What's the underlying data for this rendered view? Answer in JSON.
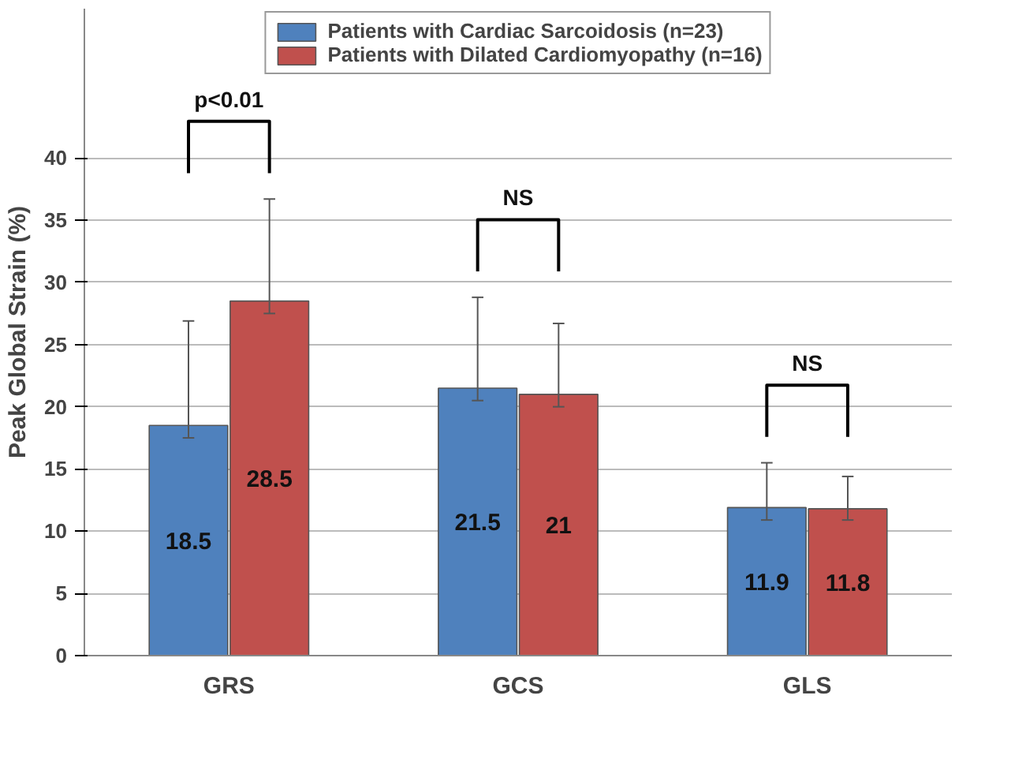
{
  "chart_data": {
    "type": "bar",
    "ylabel": "Peak Global Strain (%)",
    "categories": [
      "GRS",
      "GCS",
      "GLS"
    ],
    "series": [
      {
        "name": "Patients with Cardiac Sarcoidosis (n=23)",
        "color": "#4f81bd",
        "values": [
          18.5,
          21.5,
          11.9
        ],
        "errors": [
          [
            17.5,
            26.9
          ],
          [
            20.5,
            28.8
          ],
          [
            10.9,
            15.5
          ]
        ]
      },
      {
        "name": "Patients with Dilated Cardiomyopathy (n=16)",
        "color": "#c0504d",
        "values": [
          28.5,
          21,
          11.8
        ],
        "errors": [
          [
            27.5,
            36.7
          ],
          [
            20.0,
            26.7
          ],
          [
            10.9,
            14.4
          ]
        ]
      }
    ],
    "ylim": [
      0,
      52
    ],
    "yticks": [
      0,
      5,
      10,
      15,
      20,
      25,
      30,
      35,
      40
    ],
    "grid": "y",
    "legend": "top",
    "data_labels": true,
    "annotations": [
      "p<0.01",
      "NS",
      "NS"
    ]
  }
}
